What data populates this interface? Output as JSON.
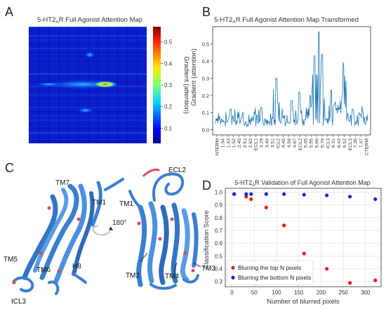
{
  "panels": {
    "A": {
      "letter": "A",
      "title": "5-HT2",
      "title_sub": "A",
      "title_end": "R Full Agonist Attention Map",
      "colorbar_label": "Gradient (attention)",
      "colorbar_ticks": [
        "0.1",
        "0.2",
        "0.3",
        "0.4",
        "0.5"
      ]
    },
    "B": {
      "letter": "B",
      "title": "5-HT2",
      "title_sub": "A",
      "title_end": "R Full Agonist Attention Map Transformed",
      "ylabel": "Gradient (attention)",
      "yticks": [
        "0.0",
        "0.1",
        "0.2",
        "0.3",
        "0.4",
        "0.5"
      ],
      "xticks": [
        "NTERM",
        "1.34",
        "1.43",
        "1.52",
        "2.40",
        "2.51",
        "2.62",
        "ECL1",
        "3.29",
        "3.40",
        "3.51",
        "ICL2",
        "4.45",
        "4.56",
        "4.67",
        "ECL2",
        "5.45",
        "5.55",
        "5.66",
        "5.76",
        "ICL3",
        "6.31",
        "6.42",
        "6.52",
        "ECL3",
        "7.36",
        "7.47",
        "CTERM"
      ]
    },
    "C": {
      "letter": "C",
      "labels": [
        "TM7",
        "TM1",
        "TM5",
        "TM6",
        "H8",
        "ICL3",
        "ECL2",
        "TM1",
        "TM2",
        "TM4",
        "TM3"
      ],
      "rotation": "180°"
    },
    "D": {
      "letter": "D",
      "title": "5-HT2",
      "title_sub": "A",
      "title_end": "R Validation of Full Agonist Attention Map",
      "xlabel": "Number of blurred pixels",
      "ylabel": "Classification Score",
      "legend": [
        "Blurring the top N pixels",
        "Blurring the bottom N pixels"
      ]
    }
  },
  "chart_data": {
    "type": "scatter",
    "title": "5-HT2AR Validation of Full Agonist Attention Map",
    "xlabel": "Number of blurred pixels",
    "ylabel": "Classification Score",
    "xlim": [
      -15,
      335
    ],
    "ylim": [
      0.26,
      1.03
    ],
    "xticks": [
      0,
      50,
      100,
      150,
      200,
      250,
      300
    ],
    "yticks": [
      0.3,
      0.4,
      0.5,
      0.6,
      0.7,
      0.8,
      0.9,
      1.0
    ],
    "grid": true,
    "legend_position": "bottom-left",
    "series": [
      {
        "name": "Blurring the top N pixels",
        "color": "#e8191b",
        "x": [
          5,
          32,
          43,
          77,
          117,
          162,
          213,
          265,
          322
        ],
        "y": [
          0.985,
          0.965,
          0.945,
          0.88,
          0.74,
          0.52,
          0.4,
          0.29,
          0.31
        ]
      },
      {
        "name": "Blurring the bottom N pixels",
        "color": "#1525d6",
        "x": [
          5,
          32,
          43,
          77,
          117,
          162,
          213,
          265,
          322
        ],
        "y": [
          0.985,
          0.985,
          0.985,
          0.985,
          0.985,
          0.98,
          0.975,
          0.965,
          0.945
        ]
      }
    ]
  }
}
